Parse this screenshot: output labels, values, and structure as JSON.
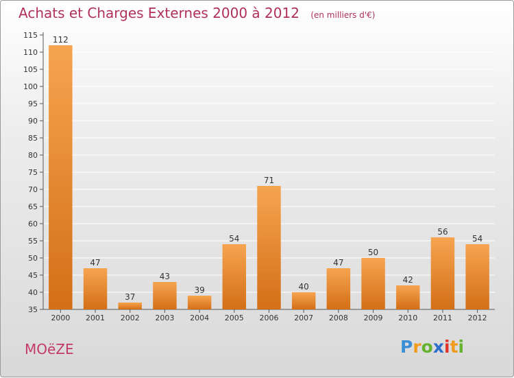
{
  "title": "Achats et Charges Externes 2000 à 2012",
  "subtitle": "(en milliers d'€)",
  "town": "MOëZE",
  "logo": {
    "text": "Proxiti",
    "letters": [
      "P",
      "r",
      "o",
      "x",
      "i",
      "t",
      "i"
    ],
    "colors": [
      "#3b8fd6",
      "#f29a1a",
      "#65b22f",
      "#2c6ec9",
      "#e1332b",
      "#f29a1a",
      "#65b22f"
    ]
  },
  "colors": {
    "title": "#b0305a",
    "bar_top": "#f6a451",
    "bar_bottom": "#d36f16",
    "grid": "#ffffff",
    "axis": "#555555"
  },
  "chart_data": {
    "type": "bar",
    "categories": [
      "2000",
      "2001",
      "2002",
      "2003",
      "2004",
      "2005",
      "2006",
      "2007",
      "2008",
      "2009",
      "2010",
      "2011",
      "2012"
    ],
    "values": [
      112,
      47,
      37,
      43,
      39,
      54,
      71,
      40,
      47,
      50,
      42,
      56,
      54
    ],
    "ylim": [
      35,
      115
    ],
    "yticks": [
      35,
      40,
      45,
      50,
      55,
      60,
      65,
      70,
      75,
      80,
      85,
      90,
      95,
      100,
      105,
      110,
      115
    ],
    "grid": true
  }
}
